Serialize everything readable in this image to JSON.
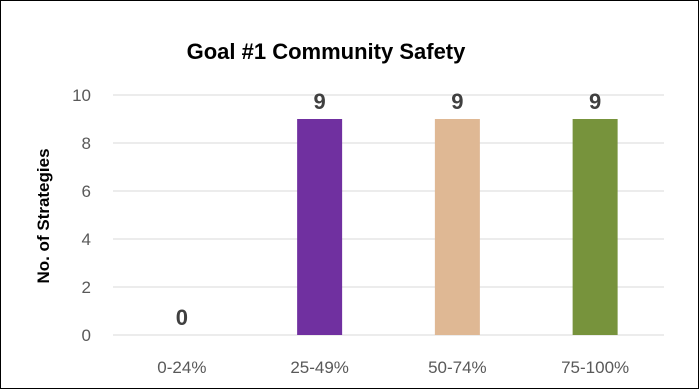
{
  "chart_data": {
    "type": "bar",
    "title": "Goal #1 Community Safety",
    "xlabel": "",
    "ylabel": "No. of Strategies",
    "categories": [
      "0-24%",
      "25-49%",
      "50-74%",
      "75-100%"
    ],
    "values": [
      0,
      9,
      9,
      9
    ],
    "colors": [
      "#7030a0",
      "#7030a0",
      "#dfb894",
      "#77933c"
    ],
    "ylim": [
      0,
      10
    ],
    "yticks": [
      0,
      2,
      4,
      6,
      8,
      10
    ],
    "grid": true,
    "legend": "none",
    "data_labels": true
  }
}
